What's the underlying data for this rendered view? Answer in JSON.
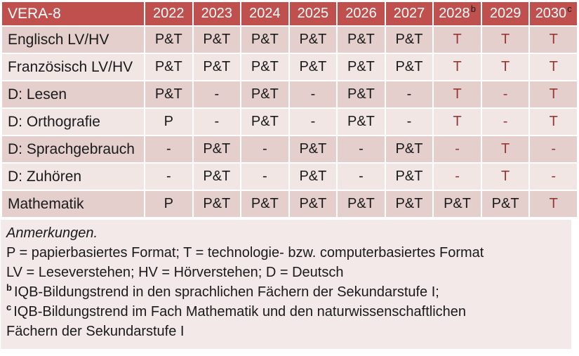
{
  "colors": {
    "header_bg": "#C0504D",
    "header_text": "#FFFFFF",
    "header_sup": "#1A1A1A",
    "band_dark": "#E4CFCD",
    "band_light": "#F1E6E4",
    "notes_bg": "#F2E9E8",
    "cell_text": "#1A1A1A",
    "accent_text": "#953735",
    "grid": "#FFFFFF"
  },
  "table": {
    "title": "VERA-8",
    "columns": [
      {
        "text": "2022",
        "sup": ""
      },
      {
        "text": "2023",
        "sup": ""
      },
      {
        "text": "2024",
        "sup": ""
      },
      {
        "text": "2025",
        "sup": ""
      },
      {
        "text": "2026",
        "sup": ""
      },
      {
        "text": "2027",
        "sup": ""
      },
      {
        "text": "2028",
        "sup": "b"
      },
      {
        "text": "2029",
        "sup": ""
      },
      {
        "text": "2030",
        "sup": "c"
      }
    ],
    "rows": [
      {
        "label": "Englisch LV/HV",
        "cells": [
          {
            "text": "P&T",
            "red": false
          },
          {
            "text": "P&T",
            "red": false
          },
          {
            "text": "P&T",
            "red": false
          },
          {
            "text": "P&T",
            "red": false
          },
          {
            "text": "P&T",
            "red": false
          },
          {
            "text": "P&T",
            "red": false
          },
          {
            "text": "T",
            "red": true
          },
          {
            "text": "T",
            "red": true
          },
          {
            "text": "T",
            "red": true
          }
        ]
      },
      {
        "label": "Französisch LV/HV",
        "cells": [
          {
            "text": "P&T",
            "red": false
          },
          {
            "text": "P&T",
            "red": false
          },
          {
            "text": "P&T",
            "red": false
          },
          {
            "text": "P&T",
            "red": false
          },
          {
            "text": "P&T",
            "red": false
          },
          {
            "text": "P&T",
            "red": false
          },
          {
            "text": "T",
            "red": true
          },
          {
            "text": "T",
            "red": true
          },
          {
            "text": "T",
            "red": true
          }
        ]
      },
      {
        "label": "D: Lesen",
        "cells": [
          {
            "text": "P&T",
            "red": false
          },
          {
            "text": "-",
            "red": false
          },
          {
            "text": "P&T",
            "red": false
          },
          {
            "text": "-",
            "red": false
          },
          {
            "text": "P&T",
            "red": false
          },
          {
            "text": "-",
            "red": false
          },
          {
            "text": "T",
            "red": true
          },
          {
            "text": "-",
            "red": true
          },
          {
            "text": "T",
            "red": true
          }
        ]
      },
      {
        "label": "D: Orthografie",
        "cells": [
          {
            "text": "P",
            "red": false
          },
          {
            "text": "-",
            "red": false
          },
          {
            "text": "P&T",
            "red": false
          },
          {
            "text": "-",
            "red": false
          },
          {
            "text": "P&T",
            "red": false
          },
          {
            "text": "-",
            "red": false
          },
          {
            "text": "T",
            "red": true
          },
          {
            "text": "-",
            "red": true
          },
          {
            "text": "T",
            "red": true
          }
        ]
      },
      {
        "label": "D: Sprachgebrauch",
        "cells": [
          {
            "text": "-",
            "red": false
          },
          {
            "text": "P&T",
            "red": false
          },
          {
            "text": "-",
            "red": false
          },
          {
            "text": "P&T",
            "red": false
          },
          {
            "text": "-",
            "red": false
          },
          {
            "text": "P&T",
            "red": false
          },
          {
            "text": "-",
            "red": true
          },
          {
            "text": "T",
            "red": true
          },
          {
            "text": "-",
            "red": true
          }
        ]
      },
      {
        "label": "D: Zuhören",
        "cells": [
          {
            "text": "-",
            "red": false
          },
          {
            "text": "P&T",
            "red": false
          },
          {
            "text": "-",
            "red": false
          },
          {
            "text": "P&T",
            "red": false
          },
          {
            "text": "-",
            "red": false
          },
          {
            "text": "P&T",
            "red": false
          },
          {
            "text": "-",
            "red": true
          },
          {
            "text": "T",
            "red": true
          },
          {
            "text": "-",
            "red": true
          }
        ]
      },
      {
        "label": "Mathematik",
        "cells": [
          {
            "text": "P",
            "red": false
          },
          {
            "text": "P&T",
            "red": false
          },
          {
            "text": "P&T",
            "red": false
          },
          {
            "text": "P&T",
            "red": false
          },
          {
            "text": "P&T",
            "red": false
          },
          {
            "text": "P&T",
            "red": false
          },
          {
            "text": "P&T",
            "red": false
          },
          {
            "text": "P&T",
            "red": false
          },
          {
            "text": "T",
            "red": true
          }
        ]
      }
    ]
  },
  "notes": {
    "heading": "Anmerkungen.",
    "line_formats": "P = papierbasiertes Format; T = technologie- bzw. computerbasiertes Format",
    "line_abbrev": "LV = Leseverstehen; HV = Hörverstehen; D = Deutsch",
    "footnote_b_sup": "b",
    "footnote_b_text": "IQB-Bildungstrend in den sprachlichen Fächern der Sekundarstufe I;",
    "footnote_c_sup": "c",
    "footnote_c_text": "IQB-Bildungstrend im Fach Mathematik und den naturwissenschaftlichen",
    "footnote_c_cont": "Fächern der Sekundarstufe I"
  }
}
